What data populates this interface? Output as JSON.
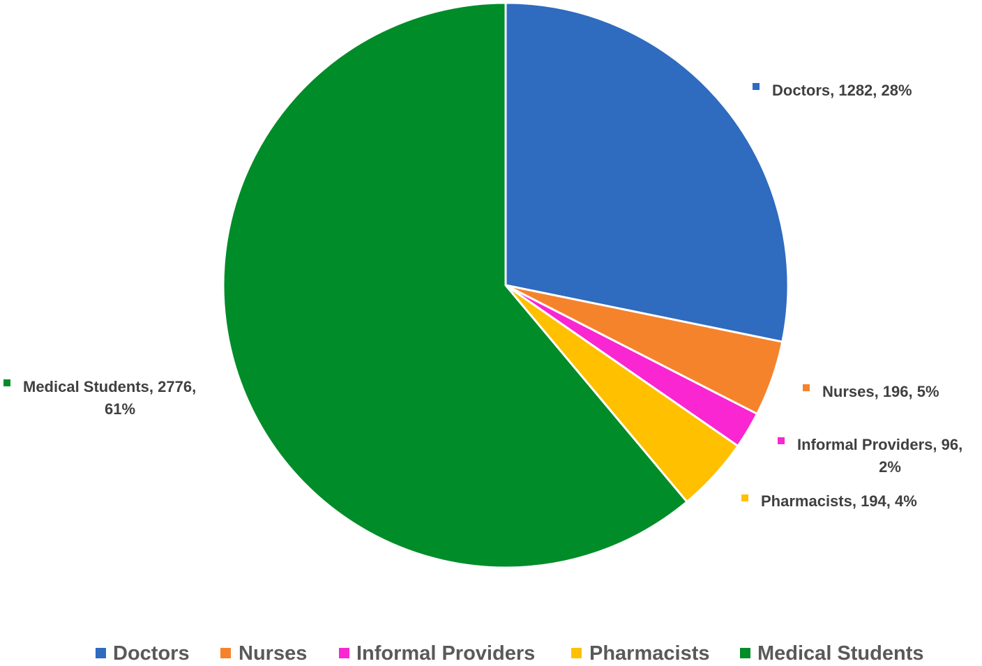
{
  "chart_data": {
    "type": "pie",
    "title": "",
    "slices": [
      {
        "label": "Doctors",
        "value": 1282,
        "percent": "28%",
        "color": "#2F6BBF",
        "data_label": [
          "Doctors, 1282, 28%"
        ]
      },
      {
        "label": "Nurses",
        "value": 196,
        "percent": "5%",
        "color": "#F5832B",
        "data_label": [
          "Nurses, 196, 5%"
        ]
      },
      {
        "label": "Informal Providers",
        "value": 96,
        "percent": "2%",
        "color": "#F926D1",
        "data_label": [
          "Informal Providers, 96,",
          "2%"
        ]
      },
      {
        "label": "Pharmacists",
        "value": 194,
        "percent": "4%",
        "color": "#FFC000",
        "data_label": [
          "Pharmacists, 194, 4%"
        ]
      },
      {
        "label": "Medical Students",
        "value": 2776,
        "percent": "61%",
        "color": "#008C28",
        "data_label": [
          "Medical Students, 2776,",
          "61%"
        ]
      }
    ],
    "start_angle": "12 o'clock",
    "direction": "clockwise",
    "legend_position": "bottom"
  }
}
